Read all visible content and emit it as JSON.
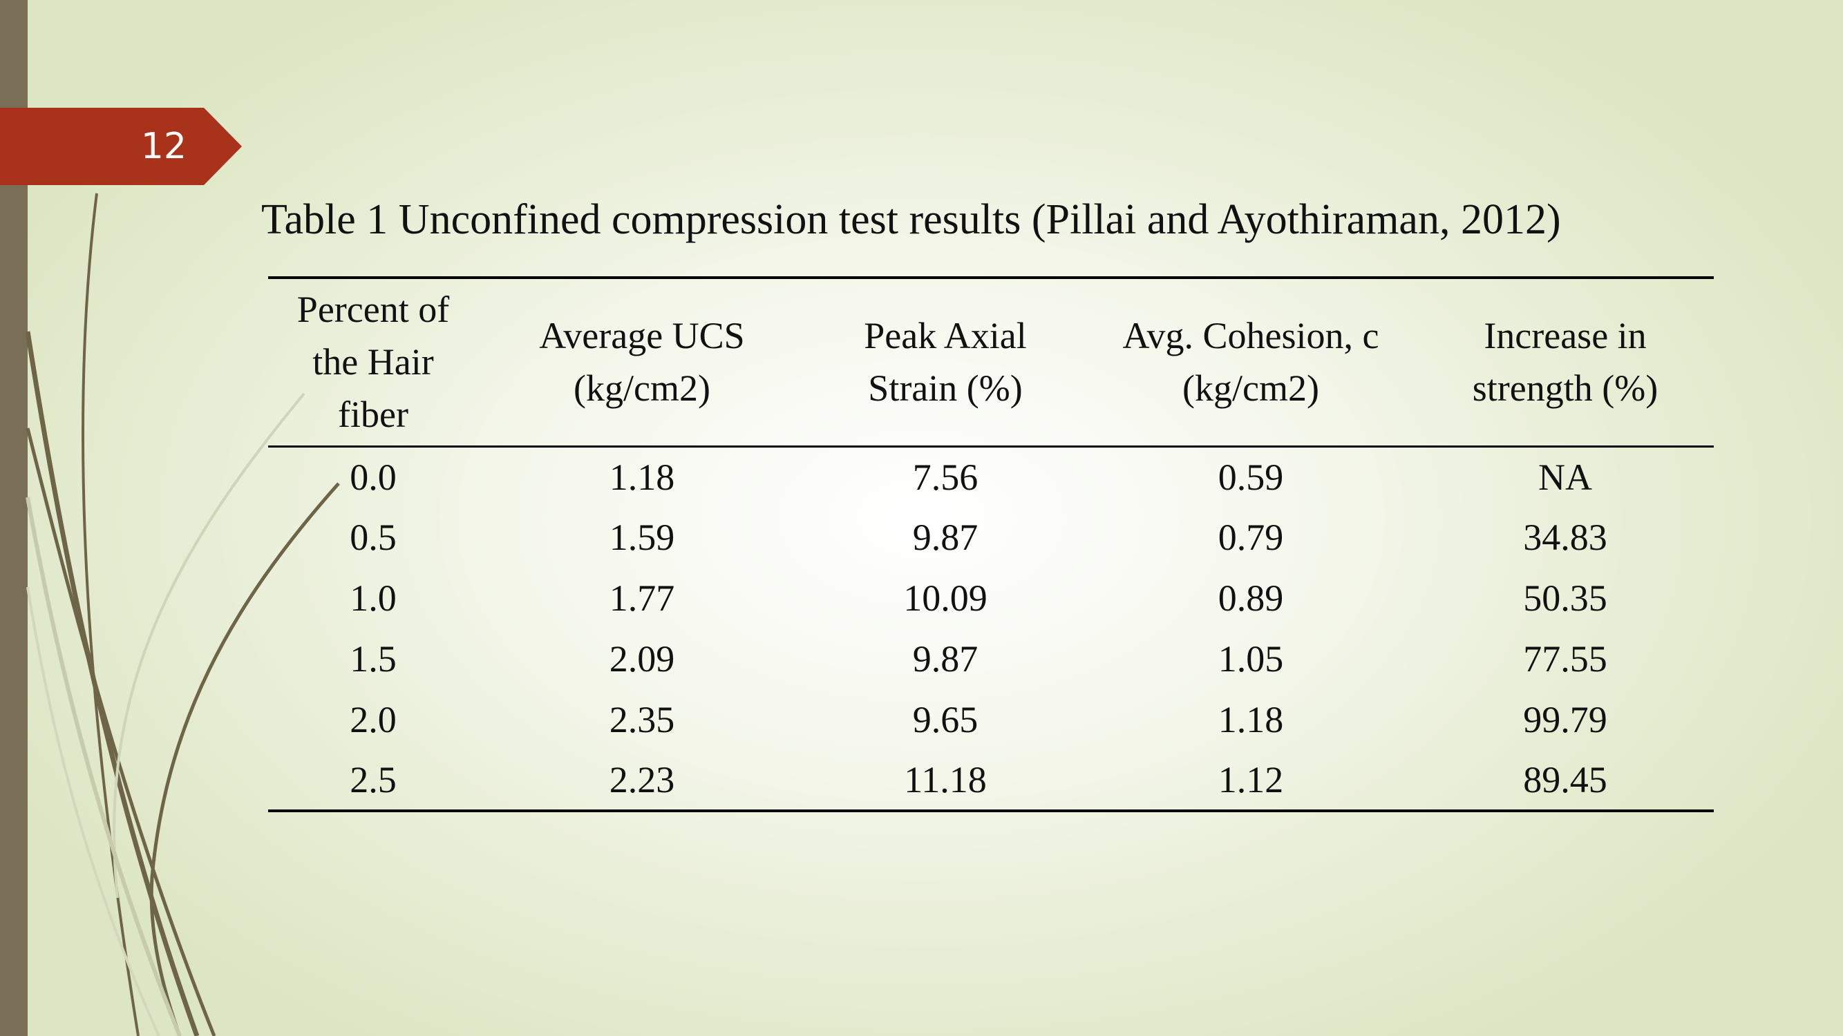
{
  "slide": {
    "number": "12",
    "title": "Table 1 Unconfined compression test results (Pillai and Ayothiraman, 2012)"
  },
  "colors": {
    "accent": "#a8321a",
    "side_bar": "#786f56",
    "decoration": "#6e6448",
    "text": "#111111"
  },
  "table": {
    "headers": [
      [
        "Percent of",
        "the Hair",
        "fiber"
      ],
      [
        "Average UCS",
        "(kg/cm2)"
      ],
      [
        "Peak Axial",
        "Strain (%)"
      ],
      [
        "Avg. Cohesion, c",
        "(kg/cm2)"
      ],
      [
        "Increase in",
        "strength (%)"
      ]
    ],
    "rows": [
      [
        "0.0",
        "1.18",
        "7.56",
        "0.59",
        "NA"
      ],
      [
        "0.5",
        "1.59",
        "9.87",
        "0.79",
        "34.83"
      ],
      [
        "1.0",
        "1.77",
        "10.09",
        "0.89",
        "50.35"
      ],
      [
        "1.5",
        "2.09",
        "9.87",
        "1.05",
        "77.55"
      ],
      [
        "2.0",
        "2.35",
        "9.65",
        "1.18",
        "99.79"
      ],
      [
        "2.5",
        "2.23",
        "11.18",
        "1.12",
        "89.45"
      ]
    ]
  }
}
